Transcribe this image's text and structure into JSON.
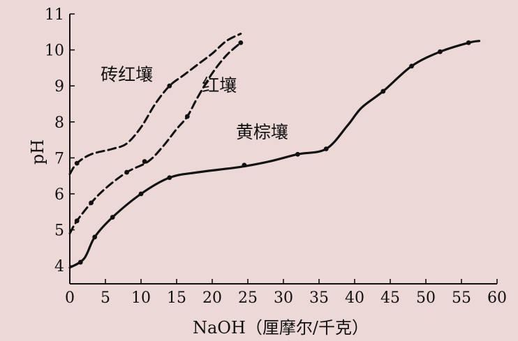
{
  "chart_data": {
    "type": "line",
    "xlabel": "NaOH（厘摩尔/千克）",
    "ylabel": "pH",
    "xlim": [
      0,
      60
    ],
    "ylim": [
      3.5,
      11
    ],
    "x_ticks": [
      0,
      5,
      10,
      15,
      20,
      25,
      30,
      35,
      40,
      45,
      50,
      55,
      60
    ],
    "y_ticks": [
      4,
      5,
      6,
      7,
      8,
      9,
      10,
      11
    ],
    "grid": false,
    "legend": "none",
    "series": [
      {
        "name": "砖红壤",
        "style": "dashed",
        "color": "#111111",
        "points": [
          [
            0,
            6.55
          ],
          [
            1,
            6.85
          ],
          [
            3,
            7.1
          ],
          [
            6,
            7.25
          ],
          [
            8,
            7.4
          ],
          [
            10,
            7.85
          ],
          [
            12,
            8.5
          ],
          [
            14,
            9.0
          ],
          [
            16,
            9.3
          ],
          [
            18,
            9.6
          ],
          [
            20,
            9.9
          ],
          [
            22,
            10.25
          ],
          [
            24,
            10.45
          ]
        ],
        "markers": [
          [
            1,
            6.85
          ],
          [
            14,
            9.0
          ]
        ]
      },
      {
        "name": "红壤",
        "style": "dashed",
        "color": "#111111",
        "points": [
          [
            0,
            4.9
          ],
          [
            1,
            5.25
          ],
          [
            3,
            5.75
          ],
          [
            5,
            6.15
          ],
          [
            8,
            6.6
          ],
          [
            11,
            6.9
          ],
          [
            13,
            7.3
          ],
          [
            15,
            7.8
          ],
          [
            16.5,
            8.15
          ],
          [
            18,
            8.7
          ],
          [
            20,
            9.35
          ],
          [
            22,
            9.85
          ],
          [
            24,
            10.2
          ]
        ],
        "markers": [
          [
            1,
            5.25
          ],
          [
            3,
            5.75
          ],
          [
            8,
            6.6
          ],
          [
            10.5,
            6.9
          ],
          [
            16.5,
            8.15
          ],
          [
            24,
            10.2
          ]
        ]
      },
      {
        "name": "黄棕壤",
        "style": "solid",
        "color": "#111111",
        "points": [
          [
            0,
            3.95
          ],
          [
            2,
            4.2
          ],
          [
            3.5,
            4.8
          ],
          [
            6,
            5.35
          ],
          [
            10,
            6.0
          ],
          [
            14,
            6.45
          ],
          [
            18,
            6.6
          ],
          [
            24,
            6.75
          ],
          [
            28,
            6.9
          ],
          [
            32,
            7.1
          ],
          [
            36,
            7.25
          ],
          [
            39,
            7.9
          ],
          [
            41,
            8.4
          ],
          [
            44,
            8.85
          ],
          [
            48,
            9.55
          ],
          [
            52,
            9.95
          ],
          [
            56,
            10.2
          ],
          [
            57.5,
            10.25
          ]
        ],
        "markers": [
          [
            1.5,
            4.1
          ],
          [
            3.5,
            4.8
          ],
          [
            6,
            5.35
          ],
          [
            10,
            6.0
          ],
          [
            14,
            6.45
          ],
          [
            24.5,
            6.8
          ],
          [
            32,
            7.1
          ],
          [
            36,
            7.25
          ],
          [
            44,
            8.85
          ],
          [
            48,
            9.55
          ],
          [
            52,
            9.95
          ],
          [
            56,
            10.2
          ]
        ]
      }
    ],
    "annotations": [
      {
        "text": "砖红壤",
        "x": 8,
        "y": 9.15
      },
      {
        "text": "红壤",
        "x": 21,
        "y": 8.85
      },
      {
        "text": "黄棕壤",
        "x": 27,
        "y": 7.55
      }
    ]
  }
}
